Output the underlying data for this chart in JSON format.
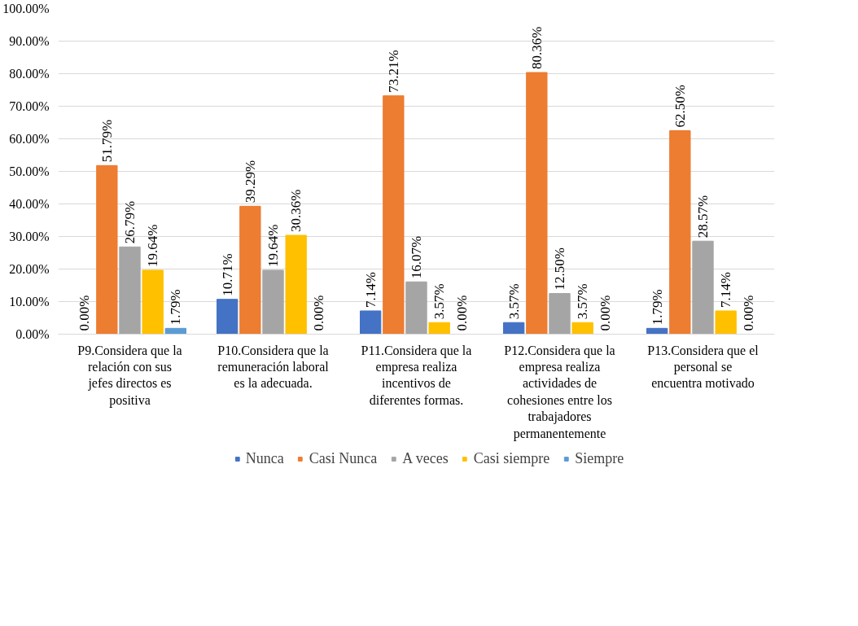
{
  "chart_data": {
    "type": "bar",
    "categories": [
      "P9.Considera que la relación con sus jefes directos es positiva",
      "P10.Considera que la remuneración laboral es la adecuada.",
      "P11.Considera que la empresa realiza incentivos de diferentes formas.",
      "P12.Considera que la empresa realiza actividades de cohesiones entre los trabajadores permanentemente",
      "P13.Considera que el personal se encuentra motivado"
    ],
    "series": [
      {
        "name": "Nunca",
        "color": "#4472c4",
        "values": [
          0,
          10.71,
          7.14,
          3.57,
          1.79
        ],
        "value_labels": [
          "0.00%",
          "10.71%",
          "7.14%",
          "3.57%",
          "1.79%"
        ]
      },
      {
        "name": "Casi Nunca",
        "color": "#ed7d31",
        "values": [
          51.79,
          39.29,
          73.21,
          80.36,
          62.5
        ],
        "value_labels": [
          "51.79%",
          "39.29%",
          "73.21%",
          "80.36%",
          "62.50%"
        ]
      },
      {
        "name": "A veces",
        "color": "#a5a5a5",
        "values": [
          26.79,
          19.64,
          16.07,
          12.5,
          28.57
        ],
        "value_labels": [
          "26.79%",
          "19.64%",
          "16.07%",
          "12.50%",
          "28.57%"
        ]
      },
      {
        "name": "Casi siempre",
        "color": "#ffc000",
        "values": [
          19.64,
          30.36,
          3.57,
          3.57,
          7.14
        ],
        "value_labels": [
          "19.64%",
          "30.36%",
          "3.57%",
          "3.57%",
          "7.14%"
        ]
      },
      {
        "name": "Siempre",
        "color": "#5b9bd5",
        "values": [
          1.79,
          0,
          0,
          0,
          0
        ],
        "value_labels": [
          "1.79%",
          "0.00%",
          "0.00%",
          "0.00%",
          "0.00%"
        ]
      }
    ],
    "ylim": [
      0,
      100
    ],
    "yticks": [
      {
        "value": 0,
        "label": "0.00%"
      },
      {
        "value": 10,
        "label": "10.00%"
      },
      {
        "value": 20,
        "label": "20.00%"
      },
      {
        "value": 30,
        "label": "30.00%"
      },
      {
        "value": 40,
        "label": "40.00%"
      },
      {
        "value": 50,
        "label": "50.00%"
      },
      {
        "value": 60,
        "label": "60.00%"
      },
      {
        "value": 70,
        "label": "70.00%"
      },
      {
        "value": 80,
        "label": "80.00%"
      },
      {
        "value": 90,
        "label": "90.00%"
      },
      {
        "value": 100,
        "label": "100.00%"
      }
    ],
    "grid": "y",
    "legend": "bottom"
  }
}
